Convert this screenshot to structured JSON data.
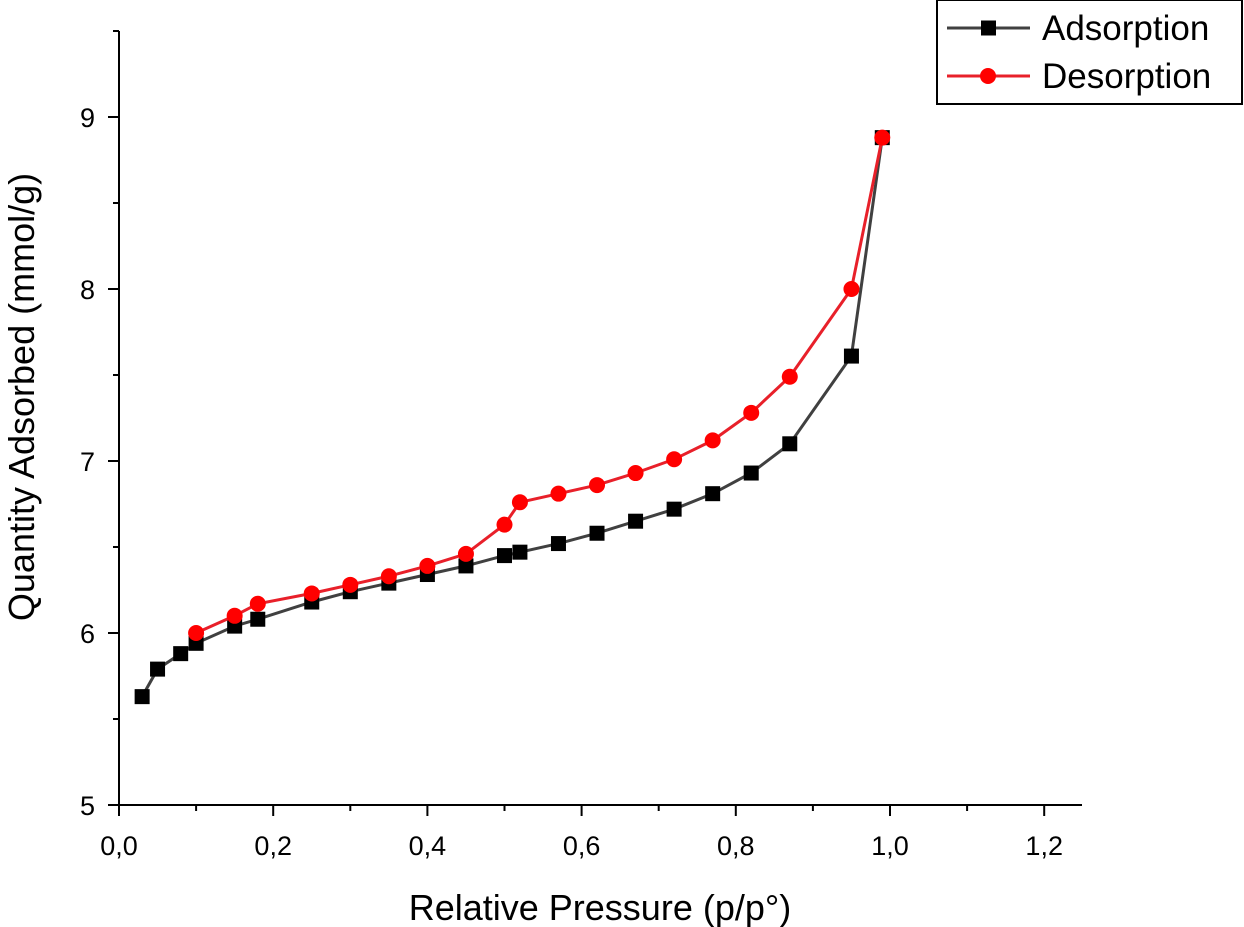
{
  "chart_data": {
    "type": "line",
    "title": "",
    "xlabel": "Relative Pressure (p/p°)",
    "ylabel": "Quantity Adsorbed (mmol/g)",
    "xlim": [
      0.0,
      1.25
    ],
    "ylim": [
      5.0,
      9.5
    ],
    "x_ticks": [
      "0,0",
      "0,2",
      "0,4",
      "0,6",
      "0,8",
      "1,0",
      "1,2"
    ],
    "y_ticks": [
      "5",
      "6",
      "7",
      "8",
      "9"
    ],
    "legend_position": "top-right",
    "grid": false,
    "series": [
      {
        "name": "Adsorption",
        "color": "#404040",
        "marker_color": "#000000",
        "marker": "square",
        "x": [
          0.03,
          0.05,
          0.08,
          0.1,
          0.15,
          0.18,
          0.25,
          0.3,
          0.35,
          0.4,
          0.45,
          0.5,
          0.52,
          0.57,
          0.62,
          0.67,
          0.72,
          0.77,
          0.82,
          0.87,
          0.95,
          0.99
        ],
        "y": [
          5.63,
          5.79,
          5.88,
          5.94,
          6.04,
          6.08,
          6.18,
          6.24,
          6.29,
          6.34,
          6.39,
          6.45,
          6.47,
          6.52,
          6.58,
          6.65,
          6.72,
          6.81,
          6.93,
          7.1,
          7.61,
          8.88
        ]
      },
      {
        "name": "Desorption",
        "color": "#e8202a",
        "marker_color": "#ff0000",
        "marker": "circle",
        "x": [
          0.99,
          0.95,
          0.87,
          0.82,
          0.77,
          0.72,
          0.67,
          0.62,
          0.57,
          0.52,
          0.5,
          0.45,
          0.4,
          0.35,
          0.3,
          0.25,
          0.18,
          0.15,
          0.1
        ],
        "y": [
          8.88,
          8.0,
          7.49,
          7.28,
          7.12,
          7.01,
          6.93,
          6.86,
          6.81,
          6.76,
          6.63,
          6.46,
          6.39,
          6.33,
          6.28,
          6.23,
          6.17,
          6.1,
          6.0
        ]
      }
    ]
  }
}
